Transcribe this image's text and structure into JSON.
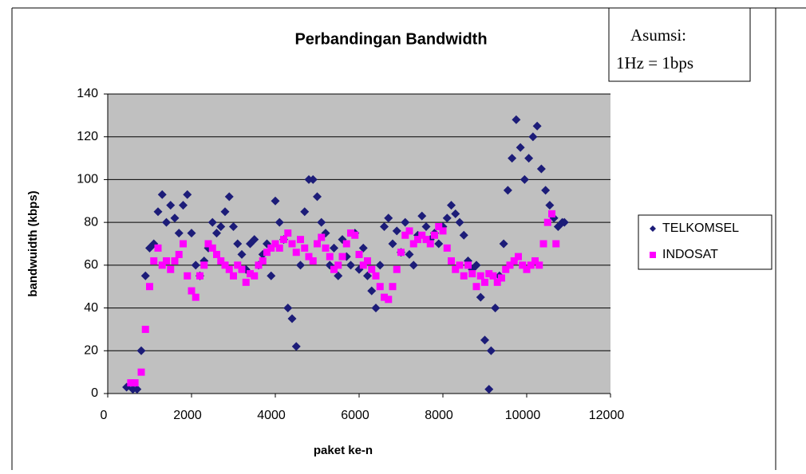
{
  "chart_data": {
    "type": "scatter",
    "title": "Perbandingan Bandwidth",
    "annotations": [
      "Asumsi:",
      "1Hz =  1bps"
    ],
    "x_label": "paket ke-n",
    "y_label": "bandwuidth (kbps)",
    "xlim": [
      0,
      12000
    ],
    "xticks": [
      0,
      2000,
      4000,
      6000,
      8000,
      10000,
      12000
    ],
    "ylim": [
      0,
      140
    ],
    "yticks": [
      0,
      20,
      40,
      60,
      80,
      100,
      120,
      140
    ],
    "grid": true,
    "legend": "right",
    "series": [
      {
        "name": "TELKOMSEL",
        "color": "#1c1c78",
        "marker": "diamond",
        "x": [
          450,
          600,
          700,
          800,
          900,
          1000,
          1100,
          1200,
          1300,
          1400,
          1500,
          1600,
          1700,
          1800,
          1900,
          2000,
          2100,
          2200,
          2300,
          2400,
          2500,
          2600,
          2700,
          2800,
          2900,
          3000,
          3100,
          3200,
          3300,
          3400,
          3500,
          3600,
          3700,
          3800,
          3900,
          4000,
          4100,
          4200,
          4300,
          4400,
          4500,
          4600,
          4700,
          4800,
          4900,
          5000,
          5100,
          5200,
          5300,
          5400,
          5500,
          5600,
          5700,
          5800,
          5900,
          6000,
          6100,
          6200,
          6300,
          6400,
          6500,
          6600,
          6700,
          6800,
          6900,
          7000,
          7100,
          7200,
          7300,
          7400,
          7500,
          7600,
          7700,
          7800,
          7900,
          8000,
          8100,
          8200,
          8300,
          8400,
          8500,
          8600,
          8700,
          8800,
          8900,
          9000,
          9100,
          9150,
          9250,
          9350,
          9450,
          9550,
          9650,
          9750,
          9850,
          9950,
          10050,
          10150,
          10250,
          10350,
          10450,
          10550,
          10650,
          10750,
          10850,
          10900
        ],
        "values": [
          3,
          2,
          2,
          20,
          55,
          68,
          70,
          85,
          93,
          80,
          88,
          82,
          75,
          88,
          93,
          75,
          60,
          55,
          62,
          68,
          80,
          75,
          78,
          85,
          92,
          78,
          70,
          65,
          58,
          70,
          72,
          60,
          65,
          70,
          55,
          90,
          80,
          72,
          40,
          35,
          22,
          60,
          85,
          100,
          100,
          92,
          80,
          75,
          60,
          68,
          55,
          72,
          64,
          60,
          75,
          58,
          68,
          55,
          48,
          40,
          60,
          78,
          82,
          70,
          76,
          66,
          80,
          65,
          60,
          74,
          83,
          78,
          72,
          75,
          70,
          78,
          82,
          88,
          84,
          80,
          74,
          62,
          58,
          60,
          45,
          25,
          2,
          20,
          40,
          55,
          70,
          95,
          110,
          128,
          115,
          100,
          110,
          120,
          125,
          105,
          95,
          88,
          82,
          78,
          80,
          80
        ]
      },
      {
        "name": "INDOSAT",
        "color": "#ff00ff",
        "marker": "square",
        "x": [
          550,
          650,
          800,
          900,
          1000,
          1100,
          1200,
          1300,
          1400,
          1500,
          1600,
          1700,
          1800,
          1900,
          2000,
          2100,
          2200,
          2300,
          2400,
          2500,
          2600,
          2700,
          2800,
          2900,
          3000,
          3100,
          3200,
          3300,
          3400,
          3500,
          3600,
          3700,
          3800,
          3900,
          4000,
          4100,
          4200,
          4300,
          4400,
          4500,
          4600,
          4700,
          4800,
          4900,
          5000,
          5100,
          5200,
          5300,
          5400,
          5500,
          5600,
          5700,
          5800,
          5900,
          6000,
          6100,
          6200,
          6300,
          6400,
          6500,
          6600,
          6700,
          6800,
          6900,
          7000,
          7100,
          7200,
          7300,
          7400,
          7500,
          7600,
          7700,
          7800,
          7900,
          8000,
          8100,
          8200,
          8300,
          8400,
          8500,
          8600,
          8700,
          8800,
          8900,
          9000,
          9100,
          9200,
          9300,
          9400,
          9500,
          9600,
          9700,
          9800,
          9900,
          10000,
          10100,
          10200,
          10300,
          10400,
          10500,
          10600,
          10700
        ],
        "values": [
          5,
          5,
          10,
          30,
          50,
          62,
          68,
          60,
          62,
          58,
          62,
          65,
          70,
          55,
          48,
          45,
          55,
          60,
          70,
          68,
          65,
          62,
          60,
          58,
          55,
          60,
          58,
          52,
          56,
          55,
          60,
          62,
          66,
          68,
          70,
          68,
          72,
          75,
          70,
          66,
          72,
          68,
          64,
          62,
          70,
          73,
          68,
          64,
          58,
          60,
          64,
          70,
          75,
          74,
          65,
          60,
          62,
          58,
          55,
          50,
          45,
          44,
          50,
          58,
          66,
          74,
          76,
          70,
          72,
          74,
          72,
          70,
          74,
          78,
          76,
          68,
          62,
          58,
          60,
          55,
          60,
          56,
          50,
          55,
          52,
          56,
          55,
          52,
          54,
          58,
          60,
          62,
          64,
          60,
          58,
          60,
          62,
          60,
          70,
          80,
          84,
          70
        ]
      }
    ]
  }
}
